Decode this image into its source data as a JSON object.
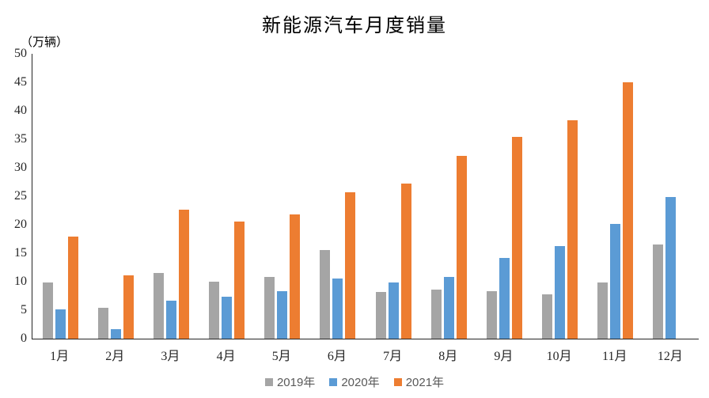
{
  "chart_data": {
    "type": "bar",
    "title": "新能源汽车月度销量",
    "unit_label": "（万辆）",
    "xlabel": "",
    "ylabel": "万辆",
    "ylim": [
      0,
      50
    ],
    "yticks": [
      0,
      5,
      10,
      15,
      20,
      25,
      30,
      35,
      40,
      45,
      50
    ],
    "grid": false,
    "legend_position": "bottom",
    "categories": [
      "1月",
      "2月",
      "3月",
      "4月",
      "5月",
      "6月",
      "7月",
      "8月",
      "9月",
      "10月",
      "11月",
      "12月"
    ],
    "series": [
      {
        "name": "2019年",
        "color": "#A5A5A5",
        "values": [
          9.8,
          5.4,
          11.5,
          10.0,
          10.9,
          15.5,
          8.2,
          8.6,
          8.3,
          7.8,
          9.8,
          16.5
        ]
      },
      {
        "name": "2020年",
        "color": "#5B9BD5",
        "values": [
          5.2,
          1.6,
          6.6,
          7.3,
          8.4,
          10.5,
          9.8,
          10.8,
          14.1,
          16.2,
          20.1,
          24.8
        ]
      },
      {
        "name": "2021年",
        "color": "#ED7D31",
        "values": [
          17.9,
          11.1,
          22.6,
          20.6,
          21.8,
          25.7,
          27.2,
          32.1,
          35.4,
          38.3,
          45.0,
          null
        ]
      }
    ]
  },
  "colors": {
    "axis": "#262626",
    "legend_text": "#595959",
    "background": "#FFFFFF"
  }
}
